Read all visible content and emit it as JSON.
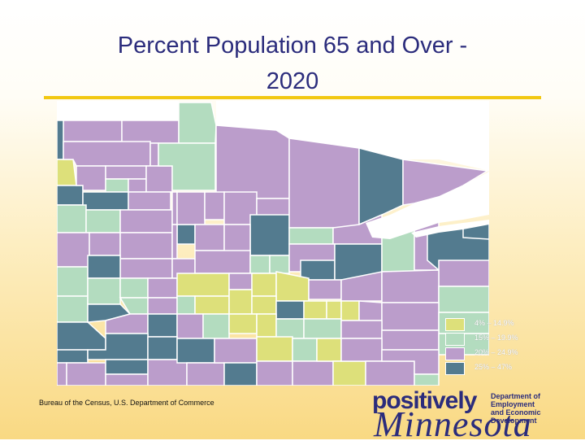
{
  "title": {
    "line1": "Percent Population 65 and Over -",
    "line2": "2020"
  },
  "legend": [
    {
      "label": "4% – 14.9%",
      "color": "#dde07a"
    },
    {
      "label": "15% – 19.9%",
      "color": "#b3dcbf"
    },
    {
      "label": "20% – 24.9%",
      "color": "#bb9dcb"
    },
    {
      "label": "25% – 47%",
      "color": "#537b8f"
    }
  ],
  "colors": {
    "lake": "#ffffff",
    "border": "#ffffff",
    "title": "#2b2c7c",
    "rule": "#f2c811"
  },
  "source": "Bureau of the Census, U.S. Department of Commerce",
  "logo": {
    "word1": "positively",
    "word2": "Minnesota",
    "dept_line1": "Department of Employment",
    "dept_line2": "and Economic Development"
  }
}
